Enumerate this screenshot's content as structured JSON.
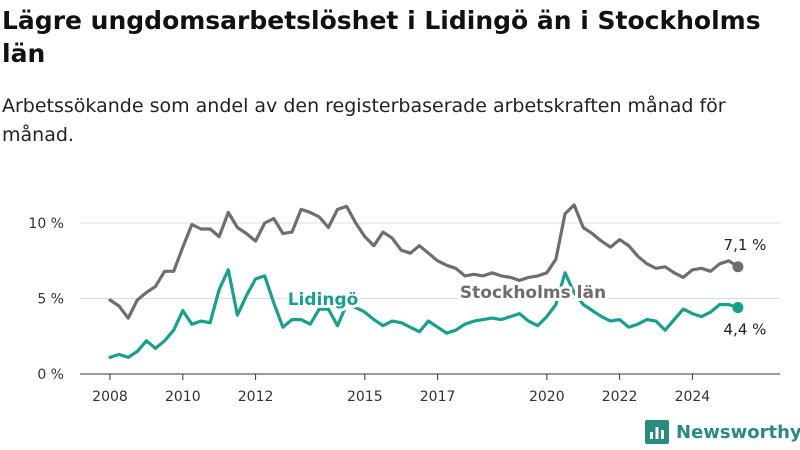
{
  "title": "Lägre ungdomsarbetslöshet i Lidingö än i Stockholms län",
  "subtitle": "Arbetssökande som andel av den registerbaserade arbetskraften månad för månad.",
  "brand": "Newsworthy",
  "colors": {
    "stockholm": "#6e6e70",
    "lidingo": "#1a9e8f",
    "grid": "#dcdcdc",
    "axis": "#333333"
  },
  "chart_data": {
    "type": "line",
    "x_tick_labels": [
      "2008",
      "2010",
      "2012",
      "2015",
      "2017",
      "2020",
      "2022",
      "2024"
    ],
    "y_tick_labels": [
      "0 %",
      "5 %",
      "10 %"
    ],
    "ylim": [
      0,
      12
    ],
    "grid": "horizontal",
    "series": [
      {
        "name": "Stockholms län",
        "end_label": "7,1 %",
        "points": [
          [
            "2008-01",
            4.9
          ],
          [
            "2008-04",
            4.5
          ],
          [
            "2008-07",
            3.7
          ],
          [
            "2008-10",
            4.9
          ],
          [
            "2009-01",
            5.4
          ],
          [
            "2009-04",
            5.8
          ],
          [
            "2009-07",
            6.8
          ],
          [
            "2009-10",
            6.8
          ],
          [
            "2010-01",
            8.4
          ],
          [
            "2010-04",
            9.9
          ],
          [
            "2010-07",
            9.6
          ],
          [
            "2010-10",
            9.6
          ],
          [
            "2011-01",
            9.1
          ],
          [
            "2011-04",
            10.7
          ],
          [
            "2011-07",
            9.7
          ],
          [
            "2011-10",
            9.3
          ],
          [
            "2012-01",
            8.8
          ],
          [
            "2012-04",
            10.0
          ],
          [
            "2012-07",
            10.3
          ],
          [
            "2012-10",
            9.3
          ],
          [
            "2013-01",
            9.4
          ],
          [
            "2013-04",
            10.9
          ],
          [
            "2013-07",
            10.7
          ],
          [
            "2013-10",
            10.4
          ],
          [
            "2014-01",
            9.7
          ],
          [
            "2014-04",
            10.9
          ],
          [
            "2014-07",
            11.1
          ],
          [
            "2014-10",
            10.0
          ],
          [
            "2015-01",
            9.1
          ],
          [
            "2015-04",
            8.5
          ],
          [
            "2015-07",
            9.4
          ],
          [
            "2015-10",
            9.0
          ],
          [
            "2016-01",
            8.2
          ],
          [
            "2016-04",
            8.0
          ],
          [
            "2016-07",
            8.5
          ],
          [
            "2016-10",
            8.0
          ],
          [
            "2017-01",
            7.5
          ],
          [
            "2017-04",
            7.2
          ],
          [
            "2017-07",
            7.0
          ],
          [
            "2017-10",
            6.5
          ],
          [
            "2018-01",
            6.6
          ],
          [
            "2018-04",
            6.5
          ],
          [
            "2018-07",
            6.7
          ],
          [
            "2018-10",
            6.5
          ],
          [
            "2019-01",
            6.4
          ],
          [
            "2019-04",
            6.2
          ],
          [
            "2019-07",
            6.4
          ],
          [
            "2019-10",
            6.5
          ],
          [
            "2020-01",
            6.7
          ],
          [
            "2020-04",
            7.6
          ],
          [
            "2020-07",
            10.6
          ],
          [
            "2020-10",
            11.2
          ],
          [
            "2021-01",
            9.7
          ],
          [
            "2021-04",
            9.3
          ],
          [
            "2021-07",
            8.8
          ],
          [
            "2021-10",
            8.4
          ],
          [
            "2022-01",
            8.9
          ],
          [
            "2022-04",
            8.5
          ],
          [
            "2022-07",
            7.8
          ],
          [
            "2022-10",
            7.3
          ],
          [
            "2023-01",
            7.0
          ],
          [
            "2023-04",
            7.1
          ],
          [
            "2023-07",
            6.7
          ],
          [
            "2023-10",
            6.4
          ],
          [
            "2024-01",
            6.9
          ],
          [
            "2024-04",
            7.0
          ],
          [
            "2024-07",
            6.8
          ],
          [
            "2024-10",
            7.3
          ],
          [
            "2025-01",
            7.5
          ],
          [
            "2025-04",
            7.1
          ]
        ]
      },
      {
        "name": "Lidingö",
        "end_label": "4,4 %",
        "points": [
          [
            "2008-01",
            1.1
          ],
          [
            "2008-04",
            1.3
          ],
          [
            "2008-07",
            1.1
          ],
          [
            "2008-10",
            1.5
          ],
          [
            "2009-01",
            2.2
          ],
          [
            "2009-04",
            1.7
          ],
          [
            "2009-07",
            2.2
          ],
          [
            "2009-10",
            2.9
          ],
          [
            "2010-01",
            4.2
          ],
          [
            "2010-04",
            3.3
          ],
          [
            "2010-07",
            3.5
          ],
          [
            "2010-10",
            3.4
          ],
          [
            "2011-01",
            5.6
          ],
          [
            "2011-04",
            6.9
          ],
          [
            "2011-07",
            3.9
          ],
          [
            "2011-10",
            5.2
          ],
          [
            "2012-01",
            6.3
          ],
          [
            "2012-04",
            6.5
          ],
          [
            "2012-07",
            4.7
          ],
          [
            "2012-10",
            3.1
          ],
          [
            "2013-01",
            3.6
          ],
          [
            "2013-04",
            3.6
          ],
          [
            "2013-07",
            3.3
          ],
          [
            "2013-10",
            4.3
          ],
          [
            "2014-01",
            4.3
          ],
          [
            "2014-04",
            3.2
          ],
          [
            "2014-07",
            4.6
          ],
          [
            "2014-10",
            4.4
          ],
          [
            "2015-01",
            4.1
          ],
          [
            "2015-04",
            3.6
          ],
          [
            "2015-07",
            3.2
          ],
          [
            "2015-10",
            3.5
          ],
          [
            "2016-01",
            3.4
          ],
          [
            "2016-04",
            3.1
          ],
          [
            "2016-07",
            2.8
          ],
          [
            "2016-10",
            3.5
          ],
          [
            "2017-01",
            3.1
          ],
          [
            "2017-04",
            2.7
          ],
          [
            "2017-07",
            2.9
          ],
          [
            "2017-10",
            3.3
          ],
          [
            "2018-01",
            3.5
          ],
          [
            "2018-04",
            3.6
          ],
          [
            "2018-07",
            3.7
          ],
          [
            "2018-10",
            3.6
          ],
          [
            "2019-01",
            3.8
          ],
          [
            "2019-04",
            4.0
          ],
          [
            "2019-07",
            3.5
          ],
          [
            "2019-10",
            3.2
          ],
          [
            "2020-01",
            3.8
          ],
          [
            "2020-04",
            4.6
          ],
          [
            "2020-07",
            6.7
          ],
          [
            "2020-10",
            5.4
          ],
          [
            "2021-01",
            4.6
          ],
          [
            "2021-04",
            4.2
          ],
          [
            "2021-07",
            3.8
          ],
          [
            "2021-10",
            3.5
          ],
          [
            "2022-01",
            3.6
          ],
          [
            "2022-04",
            3.1
          ],
          [
            "2022-07",
            3.3
          ],
          [
            "2022-10",
            3.6
          ],
          [
            "2023-01",
            3.5
          ],
          [
            "2023-04",
            2.9
          ],
          [
            "2023-07",
            3.6
          ],
          [
            "2023-10",
            4.3
          ],
          [
            "2024-01",
            4.0
          ],
          [
            "2024-04",
            3.8
          ],
          [
            "2024-07",
            4.1
          ],
          [
            "2024-10",
            4.6
          ],
          [
            "2025-01",
            4.6
          ],
          [
            "2025-04",
            4.4
          ]
        ]
      }
    ]
  }
}
